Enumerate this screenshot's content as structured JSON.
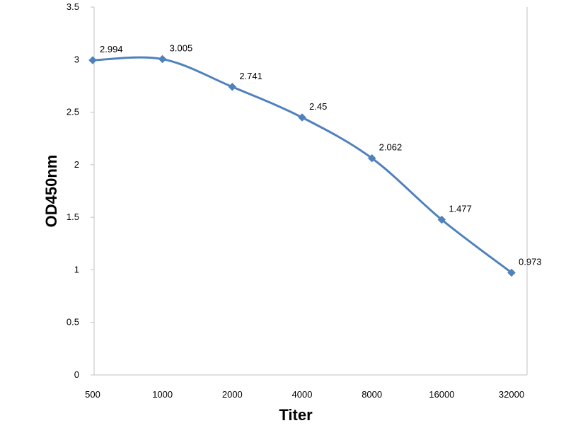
{
  "chart_data": {
    "type": "line",
    "title": "",
    "xlabel": "Titer",
    "ylabel": "OD450nm",
    "categories": [
      "500",
      "1000",
      "2000",
      "4000",
      "8000",
      "16000",
      "32000"
    ],
    "series": [
      {
        "values": [
          2.994,
          3.005,
          2.741,
          2.45,
          2.062,
          1.477,
          0.973
        ],
        "labels": [
          "2.994",
          "3.005",
          "2.741",
          "2.45",
          "2.062",
          "1.477",
          "0.973"
        ],
        "color": "#4F81BD",
        "marker": "diamond",
        "smooth": true
      }
    ],
    "ylim": [
      0,
      3.5
    ],
    "yticks": [
      "0",
      "0.5",
      "1",
      "1.5",
      "2",
      "2.5",
      "3",
      "3.5"
    ],
    "grid": false,
    "legend": "none",
    "axis_color": "#c0c0c0"
  }
}
